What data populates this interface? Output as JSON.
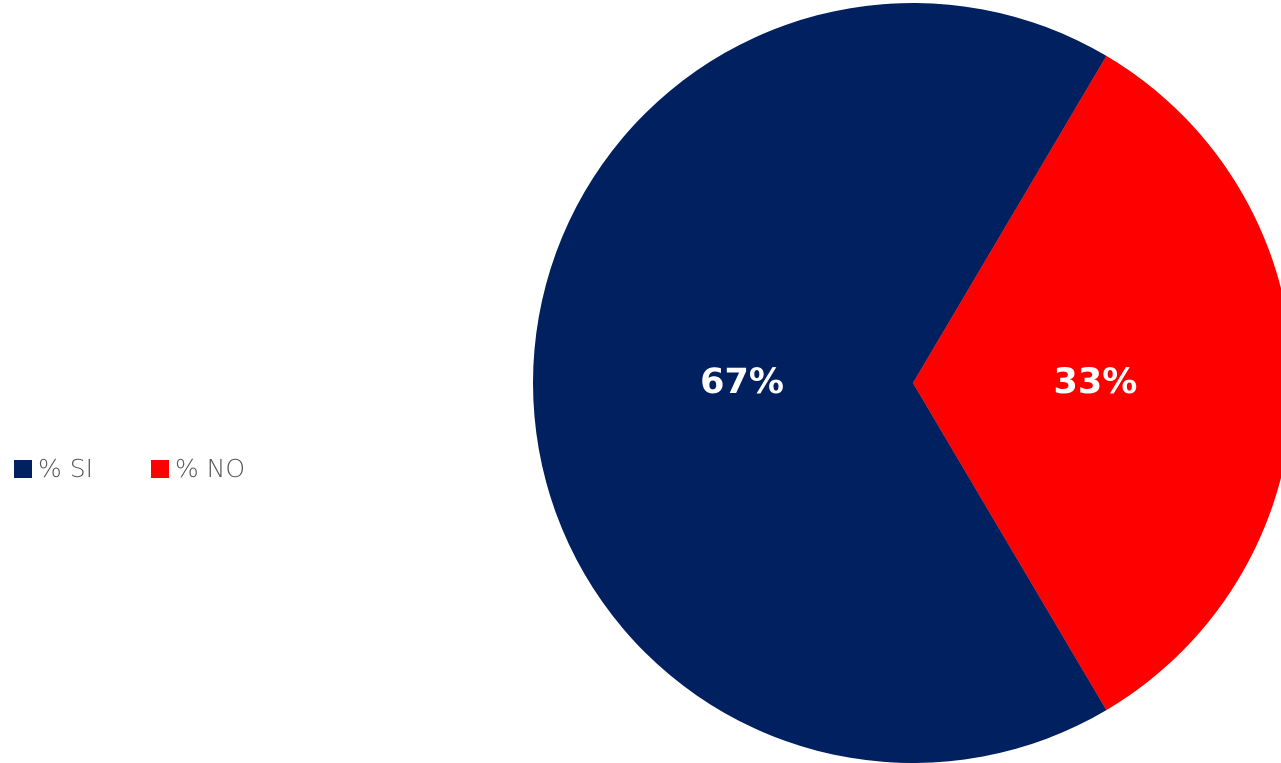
{
  "chart_data": {
    "type": "pie",
    "categories": [
      "% SI",
      "% NO"
    ],
    "values": [
      67,
      33
    ],
    "value_labels": [
      "67%",
      "33%"
    ],
    "colors": [
      "#002060",
      "#ff0000"
    ],
    "legend_position": "left",
    "title": ""
  }
}
